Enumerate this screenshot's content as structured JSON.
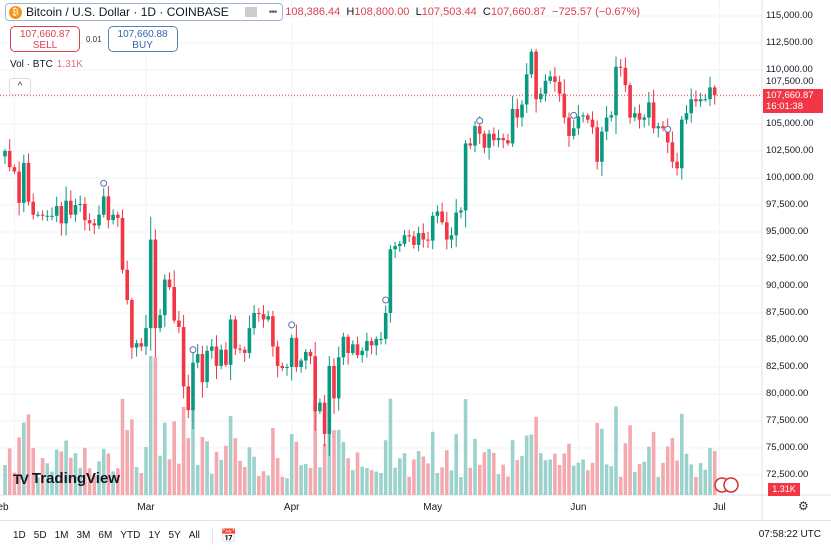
{
  "header": {
    "symbol": "Bitcoin / U.S. Dollar · 1D · COINBASE",
    "coin_glyph": "₿",
    "more": "•••",
    "open": "108,386.44",
    "high_label": "H",
    "high": "108,800.00",
    "low_label": "L",
    "low": "107,503.44",
    "close_label": "C",
    "close": "107,660.87",
    "change": "−725.57 (−0.67%)"
  },
  "trade": {
    "sell_price": "107,660.87",
    "sell_label": "SELL",
    "spread": "0.01",
    "buy_price": "107,660.88",
    "buy_label": "BUY"
  },
  "volume_legend": {
    "label": "Vol · BTC",
    "value": "1.31K"
  },
  "collapse": "^",
  "logo": "TradingView",
  "price_axis": {
    "labels": [
      "115,000.00",
      "112,500.00",
      "110,000.00",
      "107,500.00",
      "105,000.00",
      "102,500.00",
      "100,000.00",
      "97,500.00",
      "95,000.00",
      "92,500.00",
      "90,000.00",
      "87,500.00",
      "85,000.00",
      "82,500.00",
      "80,000.00",
      "77,500.00",
      "75,000.00",
      "72,500.00"
    ],
    "current_price": "107,660.87",
    "countdown": "16:01:38",
    "volume_value": "1.31K"
  },
  "time_axis": {
    "labels": [
      "Feb",
      "Mar",
      "Apr",
      "May",
      "Jun",
      "Jul"
    ]
  },
  "toolbar": {
    "ranges": [
      "1D",
      "5D",
      "1M",
      "3M",
      "6M",
      "YTD",
      "1Y",
      "5Y",
      "All"
    ],
    "clock": "07:58:22 UTC"
  },
  "colors": {
    "up": "#089981",
    "down": "#f23645",
    "up_vol": "#9bd3cc",
    "down_vol": "#f4a9ae"
  },
  "chart_data": {
    "type": "candlestick",
    "interval": "1D",
    "start_date": "Jan 30",
    "end_date": "Jun 30",
    "ylim": [
      71000,
      116000
    ],
    "first_open": 102.0,
    "closes_k": [
      102.5,
      101.0,
      100.6,
      97.7,
      101.4,
      97.8,
      96.6,
      96.6,
      96.5,
      96.5,
      96.5,
      97.4,
      95.8,
      97.9,
      96.6,
      97.5,
      97.6,
      96.1,
      95.8,
      95.6,
      96.6,
      98.3,
      96.1,
      96.6,
      96.3,
      91.5,
      88.7,
      84.3,
      84.7,
      84.4,
      86.1,
      94.3,
      86.1,
      87.3,
      90.6,
      89.9,
      86.8,
      86.2,
      80.7,
      78.5,
      82.9,
      83.7,
      81.1,
      84.0,
      84.4,
      82.6,
      84.1,
      82.7,
      86.9,
      84.2,
      84.1,
      83.8,
      86.1,
      87.5,
      87.4,
      86.9,
      87.2,
      84.4,
      82.6,
      82.4,
      82.5,
      85.2,
      82.5,
      83.1,
      83.9,
      83.5,
      78.4,
      79.2,
      76.3,
      82.6,
      79.6,
      83.4,
      85.3,
      83.8,
      84.6,
      83.6,
      84.0,
      84.9,
      84.5,
      85.1,
      85.1,
      87.5,
      93.4,
      93.7,
      93.9,
      94.7,
      94.6,
      93.8,
      94.9,
      94.3,
      94.2,
      96.5,
      96.9,
      95.9,
      94.3,
      94.7,
      96.8,
      97.0,
      103.2,
      103.0,
      104.8,
      104.1,
      102.8,
      104.1,
      103.5,
      103.7,
      103.5,
      103.2,
      106.4,
      105.6,
      106.8,
      109.6,
      111.7,
      107.3,
      107.8,
      109.0,
      109.4,
      108.9,
      107.8,
      105.6,
      103.9,
      104.6,
      105.7,
      105.8,
      105.4,
      104.7,
      101.5,
      104.3,
      105.6,
      105.8,
      110.3,
      110.2,
      108.6,
      105.6,
      106.0,
      105.4,
      105.6,
      107.0,
      104.6,
      104.8,
      104.6,
      103.3,
      101.5,
      100.9,
      105.4,
      106.0,
      107.3,
      107.1,
      107.3,
      107.3,
      108.39,
      107.66
    ],
    "event_marker_indices": [
      21,
      40,
      61,
      81,
      101,
      121,
      141
    ]
  }
}
